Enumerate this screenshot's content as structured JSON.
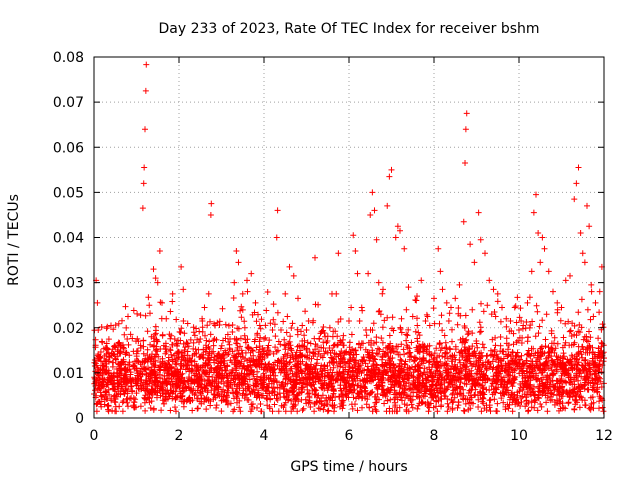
{
  "chart_data": {
    "type": "scatter",
    "title": "Day 233 of 2023, Rate Of TEC Index for receiver bshm",
    "xlabel": "GPS time / hours",
    "ylabel": "ROTI / TECUs",
    "xlim": [
      0,
      12
    ],
    "ylim": [
      0,
      0.08
    ],
    "x_ticks": [
      "0",
      "2",
      "4",
      "6",
      "8",
      "10",
      "12"
    ],
    "y_ticks": [
      "0",
      "0.01",
      "0.02",
      "0.03",
      "0.04",
      "0.05",
      "0.06",
      "0.07",
      "0.08"
    ],
    "grid": true,
    "marker": "+",
    "series_color": "#ff0000",
    "series": [
      {
        "points": [
          [
            0.05,
            0.0305
          ],
          [
            0.08,
            0.0255
          ],
          [
            0.1,
            0.0195
          ],
          [
            0.15,
            0.0135
          ],
          [
            0.2,
            0.0105
          ],
          [
            0.25,
            0.0085
          ],
          [
            0.3,
            0.0165
          ],
          [
            0.35,
            0.0125
          ],
          [
            0.45,
            0.0095
          ],
          [
            0.55,
            0.0075
          ],
          [
            0.65,
            0.0085
          ],
          [
            0.75,
            0.0105
          ],
          [
            0.8,
            0.0225
          ],
          [
            0.9,
            0.0085
          ],
          [
            0.95,
            0.0035
          ],
          [
            1.0,
            0.0055
          ],
          [
            1.05,
            0.0125
          ],
          [
            1.1,
            0.0155
          ],
          [
            1.15,
            0.0465
          ],
          [
            1.17,
            0.052
          ],
          [
            1.18,
            0.0555
          ],
          [
            1.2,
            0.064
          ],
          [
            1.22,
            0.0725
          ],
          [
            1.23,
            0.0783
          ],
          [
            1.3,
            0.025
          ],
          [
            1.4,
            0.033
          ],
          [
            1.45,
            0.031
          ],
          [
            1.5,
            0.03
          ],
          [
            1.55,
            0.037
          ],
          [
            1.6,
            0.0255
          ],
          [
            1.7,
            0.022
          ],
          [
            1.8,
            0.015
          ],
          [
            1.85,
            0.0275
          ],
          [
            1.9,
            0.0175
          ],
          [
            2.0,
            0.0095
          ],
          [
            2.05,
            0.0335
          ],
          [
            2.1,
            0.0285
          ],
          [
            2.2,
            0.0165
          ],
          [
            2.3,
            0.0125
          ],
          [
            2.4,
            0.0115
          ],
          [
            2.5,
            0.0175
          ],
          [
            2.55,
            0.0215
          ],
          [
            2.6,
            0.0245
          ],
          [
            2.7,
            0.0275
          ],
          [
            2.75,
            0.045
          ],
          [
            2.76,
            0.0475
          ],
          [
            2.85,
            0.0205
          ],
          [
            3.0,
            0.0135
          ],
          [
            3.1,
            0.0145
          ],
          [
            3.2,
            0.0175
          ],
          [
            3.3,
            0.03
          ],
          [
            3.35,
            0.037
          ],
          [
            3.4,
            0.0345
          ],
          [
            3.5,
            0.0275
          ],
          [
            3.6,
            0.0305
          ],
          [
            3.7,
            0.032
          ],
          [
            3.8,
            0.0255
          ],
          [
            3.9,
            0.0205
          ],
          [
            4.0,
            0.0175
          ],
          [
            4.1,
            0.015
          ],
          [
            4.2,
            0.0195
          ],
          [
            4.3,
            0.04
          ],
          [
            4.32,
            0.046
          ],
          [
            4.4,
            0.0195
          ],
          [
            4.5,
            0.0275
          ],
          [
            4.6,
            0.0335
          ],
          [
            4.7,
            0.0315
          ],
          [
            4.8,
            0.0265
          ],
          [
            4.9,
            0.0205
          ],
          [
            5.0,
            0.0195
          ],
          [
            5.1,
            0.0165
          ],
          [
            5.2,
            0.0355
          ],
          [
            5.3,
            0.0175
          ],
          [
            5.4,
            0.0155
          ],
          [
            5.5,
            0.0145
          ],
          [
            5.6,
            0.0275
          ],
          [
            5.7,
            0.0275
          ],
          [
            5.75,
            0.0365
          ],
          [
            5.8,
            0.014
          ],
          [
            5.9,
            0.0125
          ],
          [
            6.0,
            0.0215
          ],
          [
            6.05,
            0.0245
          ],
          [
            6.1,
            0.0405
          ],
          [
            6.15,
            0.037
          ],
          [
            6.2,
            0.032
          ],
          [
            6.3,
            0.0245
          ],
          [
            6.4,
            0.0195
          ],
          [
            6.45,
            0.032
          ],
          [
            6.5,
            0.045
          ],
          [
            6.55,
            0.05
          ],
          [
            6.6,
            0.046
          ],
          [
            6.65,
            0.0395
          ],
          [
            6.7,
            0.03
          ],
          [
            6.8,
            0.0285
          ],
          [
            6.9,
            0.047
          ],
          [
            6.95,
            0.0535
          ],
          [
            7.0,
            0.055
          ],
          [
            7.1,
            0.04
          ],
          [
            7.15,
            0.0425
          ],
          [
            7.2,
            0.0415
          ],
          [
            7.3,
            0.0375
          ],
          [
            7.4,
            0.029
          ],
          [
            7.5,
            0.0225
          ],
          [
            7.6,
            0.027
          ],
          [
            7.7,
            0.0305
          ],
          [
            7.8,
            0.0215
          ],
          [
            7.9,
            0.0205
          ],
          [
            8.0,
            0.0265
          ],
          [
            8.1,
            0.0375
          ],
          [
            8.15,
            0.0325
          ],
          [
            8.2,
            0.0285
          ],
          [
            8.3,
            0.0255
          ],
          [
            8.4,
            0.0245
          ],
          [
            8.5,
            0.0265
          ],
          [
            8.6,
            0.0295
          ],
          [
            8.7,
            0.0435
          ],
          [
            8.73,
            0.0565
          ],
          [
            8.75,
            0.064
          ],
          [
            8.77,
            0.0675
          ],
          [
            8.85,
            0.0385
          ],
          [
            8.95,
            0.0345
          ],
          [
            9.05,
            0.0455
          ],
          [
            9.1,
            0.0395
          ],
          [
            9.2,
            0.0365
          ],
          [
            9.3,
            0.0305
          ],
          [
            9.4,
            0.0285
          ],
          [
            9.5,
            0.0275
          ],
          [
            9.6,
            0.0245
          ],
          [
            9.7,
            0.022
          ],
          [
            9.8,
            0.0215
          ],
          [
            9.9,
            0.0245
          ],
          [
            10.0,
            0.0195
          ],
          [
            10.1,
            0.0205
          ],
          [
            10.2,
            0.0255
          ],
          [
            10.3,
            0.0325
          ],
          [
            10.35,
            0.0455
          ],
          [
            10.4,
            0.0495
          ],
          [
            10.45,
            0.041
          ],
          [
            10.5,
            0.0345
          ],
          [
            10.55,
            0.04
          ],
          [
            10.6,
            0.0375
          ],
          [
            10.7,
            0.0325
          ],
          [
            10.8,
            0.028
          ],
          [
            10.9,
            0.0255
          ],
          [
            11.0,
            0.0245
          ],
          [
            11.1,
            0.0305
          ],
          [
            11.2,
            0.0315
          ],
          [
            11.3,
            0.0485
          ],
          [
            11.35,
            0.052
          ],
          [
            11.4,
            0.0555
          ],
          [
            11.45,
            0.041
          ],
          [
            11.5,
            0.0365
          ],
          [
            11.55,
            0.0345
          ],
          [
            11.6,
            0.047
          ],
          [
            11.65,
            0.0425
          ],
          [
            11.7,
            0.0295
          ],
          [
            11.8,
            0.0255
          ],
          [
            11.9,
            0.028
          ],
          [
            11.95,
            0.0335
          ],
          [
            0.4,
            0.0205
          ],
          [
            1.35,
            0.018
          ],
          [
            2.35,
            0.019
          ],
          [
            3.15,
            0.0185
          ],
          [
            3.55,
            0.02
          ],
          [
            4.15,
            0.021
          ],
          [
            4.55,
            0.0225
          ],
          [
            5.05,
            0.0215
          ],
          [
            5.55,
            0.02
          ],
          [
            6.25,
            0.0215
          ],
          [
            6.75,
            0.023
          ],
          [
            7.35,
            0.024
          ],
          [
            7.85,
            0.0225
          ],
          [
            8.35,
            0.0215
          ],
          [
            8.9,
            0.024
          ],
          [
            9.45,
            0.0225
          ],
          [
            10.05,
            0.0215
          ],
          [
            10.65,
            0.023
          ],
          [
            11.25,
            0.021
          ],
          [
            11.75,
            0.0225
          ]
        ]
      }
    ]
  }
}
